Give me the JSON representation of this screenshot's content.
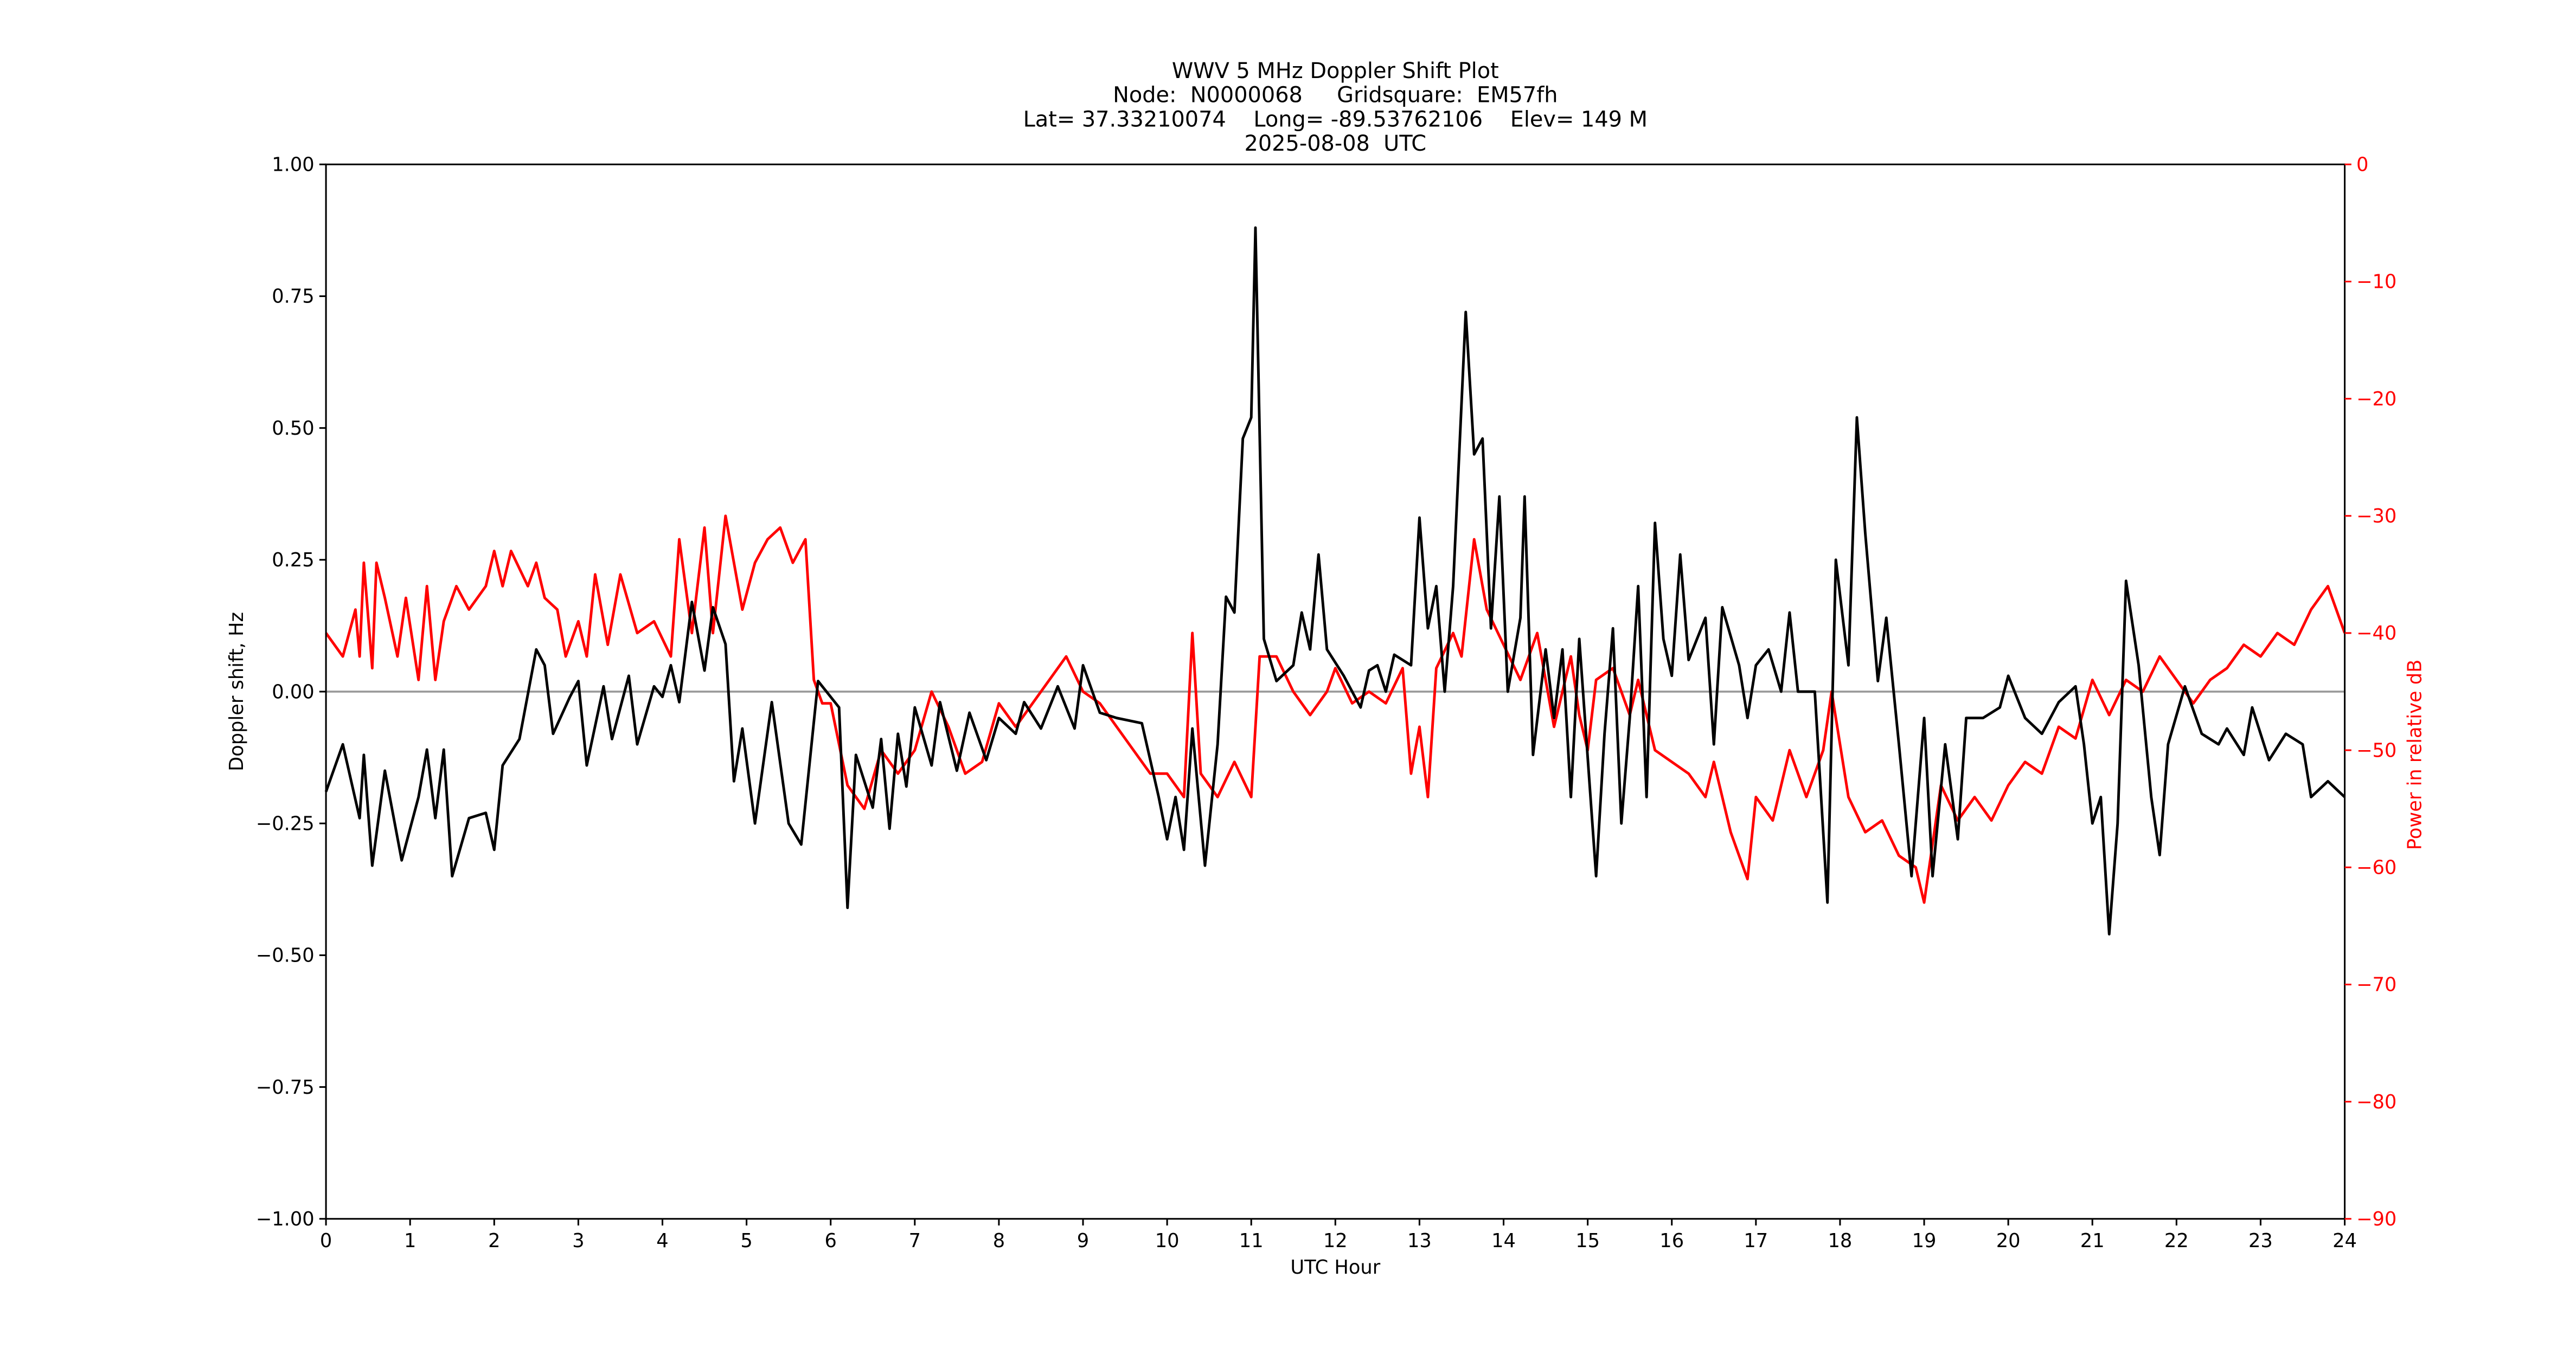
{
  "chart_data": {
    "type": "line",
    "title": [
      "WWV 5 MHz Doppler Shift Plot",
      "Node:  N0000068     Gridsquare:  EM57fh",
      "Lat= 37.33210074    Long= -89.53762106    Elev= 149 M",
      "2025-08-08  UTC"
    ],
    "xlabel": "UTC Hour",
    "ylabel": "Doppler shift, Hz",
    "y2label": "Power in relative dB",
    "xlim": [
      0,
      24
    ],
    "xticks": [
      0,
      1,
      2,
      3,
      4,
      5,
      6,
      7,
      8,
      9,
      10,
      11,
      12,
      13,
      14,
      15,
      16,
      17,
      18,
      19,
      20,
      21,
      22,
      23,
      24
    ],
    "ylim": [
      -1,
      1
    ],
    "yticks": [
      {
        "value": -1,
        "label": "−1.00"
      },
      {
        "value": -0.75,
        "label": "−0.75"
      },
      {
        "value": -0.5,
        "label": "−0.50"
      },
      {
        "value": -0.25,
        "label": "−0.25"
      },
      {
        "value": 0,
        "label": "0.00"
      },
      {
        "value": 0.25,
        "label": "0.25"
      },
      {
        "value": 0.5,
        "label": "0.50"
      },
      {
        "value": 0.75,
        "label": "0.75"
      },
      {
        "value": 1,
        "label": "1.00"
      }
    ],
    "y2lim": [
      -90,
      0
    ],
    "y2ticks": [
      {
        "value": -90,
        "label": "−90"
      },
      {
        "value": -80,
        "label": "−80"
      },
      {
        "value": -70,
        "label": "−70"
      },
      {
        "value": -60,
        "label": "−60"
      },
      {
        "value": -50,
        "label": "−50"
      },
      {
        "value": -40,
        "label": "−40"
      },
      {
        "value": -30,
        "label": "−30"
      },
      {
        "value": -20,
        "label": "−20"
      },
      {
        "value": -10,
        "label": "−10"
      },
      0
    ],
    "y2color": "#ff0000",
    "hlines": [
      0
    ],
    "hline_color": "#999999",
    "series": [
      {
        "color": "#ff0000",
        "axis": "y2",
        "x": [
          0,
          0.2,
          0.35,
          0.4,
          0.45,
          0.55,
          0.6,
          0.7,
          0.85,
          0.95,
          1.1,
          1.2,
          1.3,
          1.4,
          1.55,
          1.7,
          1.9,
          2.0,
          2.1,
          2.2,
          2.4,
          2.5,
          2.6,
          2.75,
          2.85,
          3.0,
          3.1,
          3.2,
          3.35,
          3.5,
          3.7,
          3.9,
          4.1,
          4.2,
          4.35,
          4.5,
          4.6,
          4.75,
          4.95,
          5.1,
          5.25,
          5.4,
          5.55,
          5.7,
          5.8,
          5.9,
          6.0,
          6.2,
          6.4,
          6.6,
          6.8,
          7.0,
          7.2,
          7.4,
          7.6,
          7.8,
          8.0,
          8.2,
          8.4,
          8.6,
          8.8,
          9.0,
          9.2,
          9.4,
          9.6,
          9.8,
          10.0,
          10.2,
          10.3,
          10.4,
          10.6,
          10.8,
          11.0,
          11.1,
          11.3,
          11.5,
          11.7,
          11.9,
          12.0,
          12.2,
          12.4,
          12.6,
          12.8,
          12.9,
          13.0,
          13.1,
          13.2,
          13.4,
          13.5,
          13.65,
          13.8,
          14.0,
          14.2,
          14.4,
          14.6,
          14.8,
          14.9,
          15.0,
          15.1,
          15.3,
          15.5,
          15.6,
          15.8,
          16.0,
          16.2,
          16.4,
          16.5,
          16.7,
          16.9,
          17.0,
          17.2,
          17.4,
          17.6,
          17.8,
          17.9,
          18.1,
          18.3,
          18.5,
          18.7,
          18.9,
          19.0,
          19.2,
          19.4,
          19.6,
          19.8,
          20.0,
          20.2,
          20.4,
          20.6,
          20.8,
          21.0,
          21.2,
          21.4,
          21.6,
          21.8,
          22.0,
          22.2,
          22.4,
          22.6,
          22.8,
          23.0,
          23.2,
          23.4,
          23.6,
          23.8,
          24.0
        ],
        "values": [
          -40,
          -42,
          -38,
          -42,
          -34,
          -43,
          -34,
          -37,
          -42,
          -37,
          -44,
          -36,
          -44,
          -39,
          -36,
          -38,
          -36,
          -33,
          -36,
          -33,
          -36,
          -34,
          -37,
          -38,
          -42,
          -39,
          -42,
          -35,
          -41,
          -35,
          -40,
          -39,
          -42,
          -32,
          -40,
          -31,
          -40,
          -30,
          -38,
          -34,
          -32,
          -31,
          -34,
          -32,
          -44,
          -46,
          -46,
          -53,
          -55,
          -50,
          -52,
          -50,
          -45,
          -48,
          -52,
          -51,
          -46,
          -48,
          -46,
          -44,
          -42,
          -45,
          -46,
          -48,
          -50,
          -52,
          -52,
          -54,
          -40,
          -52,
          -54,
          -51,
          -54,
          -42,
          -42,
          -45,
          -47,
          -45,
          -43,
          -46,
          -45,
          -46,
          -43,
          -52,
          -48,
          -54,
          -43,
          -40,
          -42,
          -32,
          -38,
          -41,
          -44,
          -40,
          -48,
          -42,
          -47,
          -50,
          -44,
          -43,
          -47,
          -44,
          -50,
          -51,
          -52,
          -54,
          -51,
          -57,
          -61,
          -54,
          -56,
          -50,
          -54,
          -50,
          -45,
          -54,
          -57,
          -56,
          -59,
          -60,
          -63,
          -53,
          -56,
          -54,
          -56,
          -53,
          -51,
          -52,
          -48,
          -49,
          -44,
          -47,
          -44,
          -45,
          -42,
          -44,
          -46,
          -44,
          -43,
          -41,
          -42,
          -40,
          -41,
          -38,
          -36,
          -40
        ]
      },
      {
        "color": "#000000",
        "x": [
          0,
          0.2,
          0.4,
          0.45,
          0.55,
          0.7,
          0.9,
          1.1,
          1.2,
          1.3,
          1.4,
          1.5,
          1.7,
          1.9,
          2.0,
          2.1,
          2.3,
          2.5,
          2.6,
          2.7,
          2.9,
          3.0,
          3.1,
          3.3,
          3.4,
          3.6,
          3.7,
          3.9,
          4.0,
          4.1,
          4.2,
          4.35,
          4.5,
          4.6,
          4.75,
          4.85,
          4.95,
          5.1,
          5.3,
          5.5,
          5.65,
          5.85,
          6.0,
          6.1,
          6.2,
          6.3,
          6.5,
          6.6,
          6.7,
          6.8,
          6.9,
          7.0,
          7.2,
          7.3,
          7.5,
          7.65,
          7.85,
          8.0,
          8.2,
          8.3,
          8.5,
          8.7,
          8.9,
          9.0,
          9.2,
          9.4,
          9.7,
          9.9,
          10.0,
          10.1,
          10.2,
          10.3,
          10.45,
          10.6,
          10.7,
          10.8,
          10.9,
          11.0,
          11.05,
          11.15,
          11.3,
          11.5,
          11.6,
          11.7,
          11.8,
          11.9,
          12.1,
          12.3,
          12.4,
          12.5,
          12.6,
          12.7,
          12.9,
          13.0,
          13.1,
          13.2,
          13.3,
          13.4,
          13.55,
          13.65,
          13.75,
          13.85,
          13.95,
          14.05,
          14.2,
          14.25,
          14.35,
          14.5,
          14.6,
          14.7,
          14.8,
          14.9,
          15.1,
          15.2,
          15.3,
          15.4,
          15.5,
          15.6,
          15.7,
          15.8,
          15.9,
          16.0,
          16.1,
          16.2,
          16.4,
          16.5,
          16.6,
          16.8,
          16.9,
          17.0,
          17.15,
          17.3,
          17.4,
          17.5,
          17.7,
          17.85,
          17.95,
          18.1,
          18.2,
          18.3,
          18.45,
          18.55,
          18.7,
          18.85,
          19.0,
          19.1,
          19.25,
          19.4,
          19.5,
          19.7,
          19.9,
          20.0,
          20.2,
          20.4,
          20.6,
          20.8,
          20.9,
          21.0,
          21.1,
          21.2,
          21.3,
          21.4,
          21.55,
          21.7,
          21.8,
          21.9,
          22.1,
          22.3,
          22.5,
          22.6,
          22.8,
          22.9,
          23.1,
          23.3,
          23.5,
          23.6,
          23.8,
          24.0
        ],
        "values": [
          -0.19,
          -0.1,
          -0.24,
          -0.12,
          -0.33,
          -0.15,
          -0.32,
          -0.2,
          -0.11,
          -0.24,
          -0.11,
          -0.35,
          -0.24,
          -0.23,
          -0.3,
          -0.14,
          -0.09,
          0.08,
          0.05,
          -0.08,
          -0.01,
          0.02,
          -0.14,
          0.01,
          -0.09,
          0.03,
          -0.1,
          0.01,
          -0.01,
          0.05,
          -0.02,
          0.17,
          0.04,
          0.16,
          0.09,
          -0.17,
          -0.07,
          -0.25,
          -0.02,
          -0.25,
          -0.29,
          0.02,
          -0.01,
          -0.03,
          -0.41,
          -0.12,
          -0.22,
          -0.09,
          -0.26,
          -0.08,
          -0.18,
          -0.03,
          -0.14,
          -0.02,
          -0.15,
          -0.04,
          -0.13,
          -0.05,
          -0.08,
          -0.02,
          -0.07,
          0.01,
          -0.07,
          0.05,
          -0.04,
          -0.05,
          -0.06,
          -0.2,
          -0.28,
          -0.2,
          -0.3,
          -0.07,
          -0.33,
          -0.1,
          0.18,
          0.15,
          0.48,
          0.52,
          0.88,
          0.1,
          0.02,
          0.05,
          0.15,
          0.08,
          0.26,
          0.08,
          0.03,
          -0.03,
          0.04,
          0.05,
          0,
          0.07,
          0.05,
          0.33,
          0.12,
          0.2,
          0,
          0.2,
          0.72,
          0.45,
          0.48,
          0.12,
          0.37,
          0,
          0.14,
          0.37,
          -0.12,
          0.08,
          -0.05,
          0.08,
          -0.2,
          0.1,
          -0.35,
          -0.08,
          0.12,
          -0.25,
          -0.05,
          0.2,
          -0.2,
          0.32,
          0.1,
          0.03,
          0.26,
          0.06,
          0.14,
          -0.1,
          0.16,
          0.05,
          -0.05,
          0.05,
          0.08,
          0,
          0.15,
          0,
          0,
          -0.4,
          0.25,
          0.05,
          0.52,
          0.3,
          0.02,
          0.14,
          -0.1,
          -0.35,
          -0.05,
          -0.35,
          -0.1,
          -0.28,
          -0.05,
          -0.05,
          -0.03,
          0.03,
          -0.05,
          -0.08,
          -0.02,
          0.01,
          -0.1,
          -0.25,
          -0.2,
          -0.46,
          -0.25,
          0.21,
          0.05,
          -0.2,
          -0.31,
          -0.1,
          0.01,
          -0.08,
          -0.1,
          -0.07,
          -0.12,
          -0.03,
          -0.13,
          -0.08,
          -0.1,
          -0.2,
          -0.17,
          -0.2
        ]
      }
    ]
  }
}
